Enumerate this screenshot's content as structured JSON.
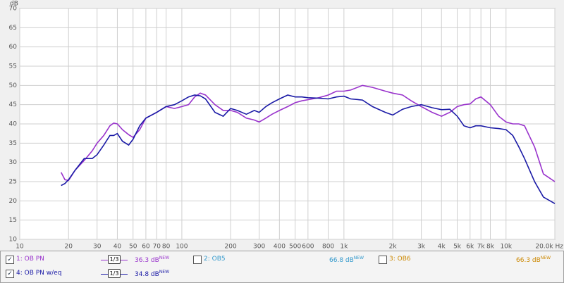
{
  "chart_data": {
    "type": "line",
    "xscale": "log",
    "grid": true,
    "ylabel": "dB",
    "xlim": [
      10,
      20000
    ],
    "ylim": [
      10,
      70
    ],
    "xticks": [
      10,
      20,
      30,
      40,
      50,
      60,
      70,
      80,
      100,
      200,
      300,
      400,
      500,
      600,
      800,
      {
        "value": 1000,
        "label": "1k"
      },
      {
        "value": 2000,
        "label": "2k"
      },
      {
        "value": 3000,
        "label": "3k"
      },
      {
        "value": 4000,
        "label": "4k"
      },
      {
        "value": 5000,
        "label": "5k"
      },
      {
        "value": 6000,
        "label": "6k"
      },
      {
        "value": 7000,
        "label": "7k"
      },
      {
        "value": 8000,
        "label": "8k"
      },
      {
        "value": 10000,
        "label": "10k"
      },
      {
        "value": 20000,
        "label": "20.0k Hz"
      }
    ],
    "yticks": [
      10,
      15,
      20,
      25,
      30,
      35,
      40,
      45,
      50,
      55,
      60,
      65,
      70
    ],
    "x": [
      18,
      19,
      20,
      22,
      25,
      28,
      30,
      33,
      36,
      38,
      40,
      43,
      47,
      50,
      55,
      60,
      70,
      80,
      90,
      100,
      110,
      120,
      130,
      140,
      160,
      180,
      200,
      220,
      250,
      280,
      300,
      330,
      360,
      400,
      450,
      500,
      550,
      600,
      700,
      800,
      900,
      1000,
      1100,
      1300,
      1500,
      1800,
      2000,
      2300,
      2600,
      3000,
      3500,
      4000,
      4500,
      5000,
      5500,
      6000,
      6500,
      7000,
      8000,
      9000,
      10000,
      11000,
      12000,
      13000,
      15000,
      17000,
      20000
    ],
    "series": [
      {
        "name": "1: OB PN",
        "color": "#9933cc",
        "checked": true,
        "smoothing": "1/3",
        "level": "36.3 dB",
        "badge": "NEW",
        "values": [
          27.4,
          25.5,
          25.3,
          28,
          30.5,
          33,
          35,
          37,
          39.5,
          40.2,
          40,
          38.5,
          37.2,
          36.5,
          38.5,
          41.5,
          43,
          44.5,
          44,
          44.5,
          45,
          47,
          48,
          47.5,
          45,
          43.5,
          43.5,
          43,
          41.5,
          41,
          40.5,
          41.5,
          42.5,
          43.5,
          44.5,
          45.5,
          46,
          46.3,
          46.8,
          47.5,
          48.5,
          48.5,
          48.8,
          50,
          49.5,
          48.5,
          48,
          47.5,
          46,
          44.5,
          43,
          42,
          43,
          44.5,
          45,
          45.2,
          46.5,
          47,
          45,
          42,
          40.5,
          40,
          40,
          39.5,
          34,
          27,
          25
        ]
      },
      {
        "name": "4: OB PN w/eq",
        "color": "#1a1aa6",
        "checked": true,
        "smoothing": "1/3",
        "level": "34.8 dB",
        "badge": "NEW",
        "values": [
          24,
          24.5,
          25.5,
          28,
          31,
          31,
          32,
          34.5,
          37,
          37,
          37.5,
          35.5,
          34.5,
          36,
          39.5,
          41.5,
          43,
          44.5,
          45,
          46,
          47,
          47.5,
          47.3,
          46.5,
          43,
          42,
          44,
          43.5,
          42.5,
          43.5,
          43,
          44.5,
          45.5,
          46.5,
          47.5,
          47,
          47,
          46.8,
          46.7,
          46.5,
          47,
          47.2,
          46.5,
          46.2,
          44.5,
          43,
          42.3,
          43.8,
          44.5,
          45,
          44.2,
          43.7,
          43.8,
          42,
          39.5,
          39,
          39.5,
          39.5,
          39,
          38.8,
          38.5,
          37,
          34,
          31,
          25,
          21,
          19.3
        ]
      }
    ]
  },
  "hidden_traces": [
    {
      "name": "2: OB5",
      "color": "#3399cc",
      "checked": false,
      "level": "66.8 dB",
      "badge": "NEW"
    },
    {
      "name": "3: OB6",
      "color": "#cc8800",
      "checked": false,
      "level": "66.3 dB",
      "badge": "NEW"
    }
  ]
}
